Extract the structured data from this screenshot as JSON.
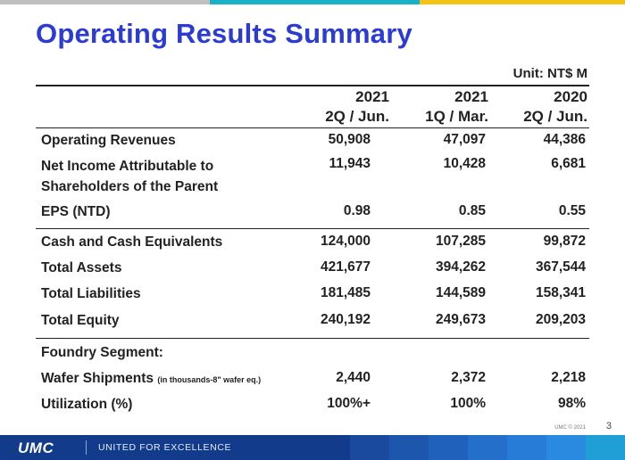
{
  "colors": {
    "title": "#2b3bd4",
    "footer": "#123b8c",
    "bar_gray": "#bfbfbf",
    "bar_teal": "#19b1c8",
    "bar_yellow": "#f3c316"
  },
  "title": "Operating Results Summary",
  "unit": "Unit: NT$ M",
  "columns": [
    {
      "year": "2021",
      "period": "2Q / Jun."
    },
    {
      "year": "2021",
      "period": "1Q / Mar."
    },
    {
      "year": "2020",
      "period": "2Q / Jun."
    }
  ],
  "rows": [
    {
      "label": "Operating Revenues",
      "values": [
        "50,908",
        "47,097",
        "44,386"
      ]
    },
    {
      "label": "Net Income Attributable to",
      "label2": "Shareholders of the Parent",
      "values": [
        "11,943",
        "10,428",
        "6,681"
      ]
    },
    {
      "label": "EPS (NTD)",
      "values": [
        "0.98",
        "0.85",
        "0.55"
      ]
    },
    {
      "label": "Cash and Cash Equivalents",
      "values": [
        "124,000",
        "107,285",
        "99,872"
      ]
    },
    {
      "label": "Total Assets",
      "values": [
        "421,677",
        "394,262",
        "367,544"
      ]
    },
    {
      "label": "Total Liabilities",
      "values": [
        "181,485",
        "144,589",
        "158,341"
      ]
    },
    {
      "label": "Total Equity",
      "values": [
        "240,192",
        "249,673",
        "209,203"
      ]
    },
    {
      "label": "Foundry Segment:"
    },
    {
      "label": "Wafer Shipments",
      "note": "(in thousands-8\" wafer eq.)",
      "values": [
        "2,440",
        "2,372",
        "2,218"
      ]
    },
    {
      "label": "Utilization (%)",
      "values": [
        "100%+",
        "100%",
        "98%"
      ]
    }
  ],
  "footer": {
    "logo": "UMC",
    "tagline": "UNITED FOR EXCELLENCE",
    "copyright": "UMC © 2021",
    "page": "3"
  }
}
